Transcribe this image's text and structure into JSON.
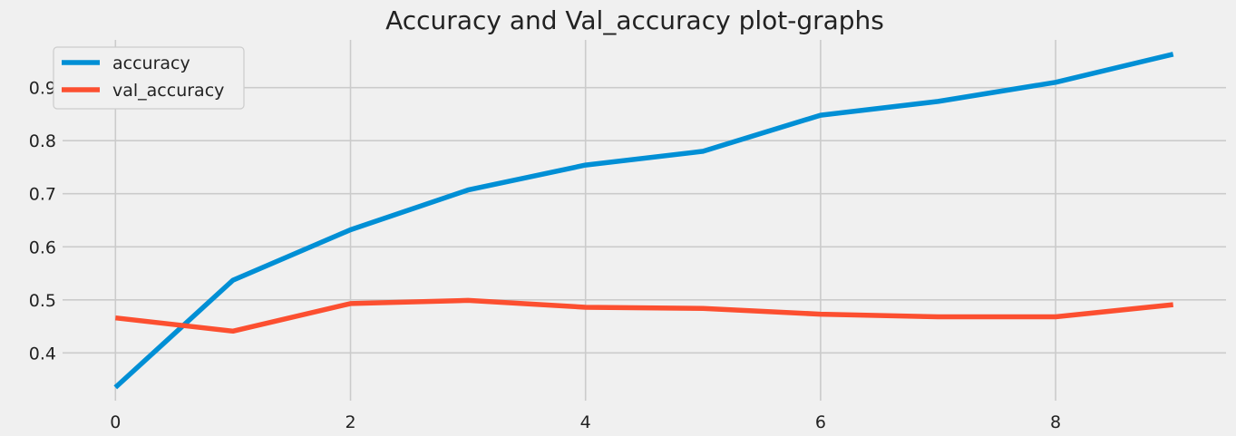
{
  "chart_data": {
    "type": "line",
    "title": "Accuracy and Val_accuracy plot-graphs",
    "xlabel": "",
    "ylabel": "",
    "x": [
      0,
      1,
      2,
      3,
      4,
      5,
      6,
      7,
      8,
      9
    ],
    "xlim": [
      -0.45,
      9.45
    ],
    "ylim": [
      0.31,
      0.99
    ],
    "xticks": [
      0,
      2,
      4,
      6,
      8
    ],
    "yticks": [
      0.4,
      0.5,
      0.6,
      0.7,
      0.8,
      0.9
    ],
    "xtick_labels": [
      "0",
      "2",
      "4",
      "6",
      "8"
    ],
    "ytick_labels": [
      "0.4",
      "0.5",
      "0.6",
      "0.7",
      "0.8",
      "0.9"
    ],
    "grid": true,
    "legend_position": "top-left",
    "series": [
      {
        "name": "accuracy",
        "color": "#008fd5",
        "values": [
          0.335,
          0.537,
          0.632,
          0.707,
          0.754,
          0.78,
          0.848,
          0.874,
          0.91,
          0.963
        ]
      },
      {
        "name": "val_accuracy",
        "color": "#fc4f30",
        "values": [
          0.466,
          0.441,
          0.493,
          0.499,
          0.486,
          0.484,
          0.473,
          0.468,
          0.468,
          0.491
        ]
      }
    ]
  }
}
